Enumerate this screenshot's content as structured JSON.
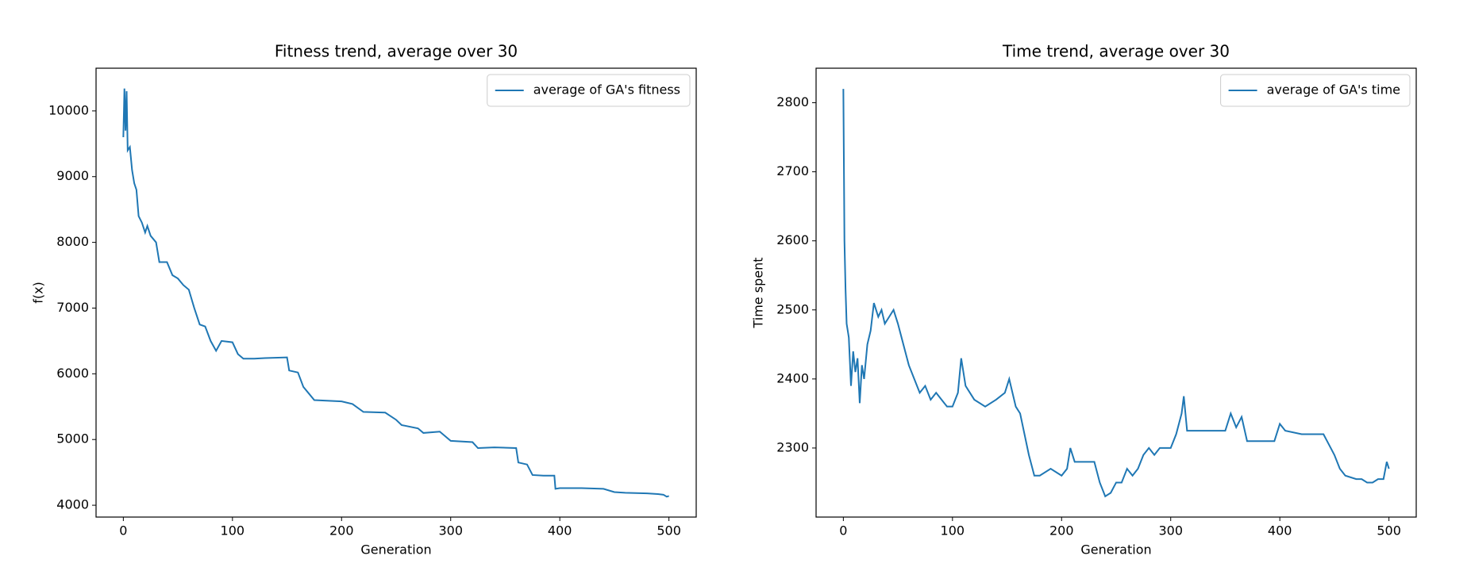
{
  "chart_data": [
    {
      "type": "line",
      "title": "Fitness trend, average over 30",
      "xlabel": "Generation",
      "ylabel": "f(x)",
      "x": [
        0,
        1,
        2,
        3,
        4,
        6,
        8,
        10,
        12,
        14,
        17,
        20,
        22,
        25,
        30,
        33,
        40,
        45,
        50,
        55,
        60,
        65,
        70,
        75,
        80,
        85,
        90,
        100,
        105,
        110,
        120,
        130,
        150,
        152,
        160,
        165,
        170,
        175,
        200,
        210,
        220,
        240,
        250,
        255,
        270,
        275,
        290,
        300,
        320,
        325,
        340,
        360,
        362,
        370,
        375,
        385,
        395,
        396,
        400,
        420,
        440,
        450,
        460,
        480,
        490,
        495,
        498,
        500
      ],
      "series": [
        {
          "name": "average of GA's fitness",
          "color": "#1f77b4",
          "values": [
            9600,
            10340,
            9700,
            10300,
            9400,
            9450,
            9100,
            8900,
            8800,
            8400,
            8300,
            8150,
            8250,
            8100,
            8000,
            7700,
            7700,
            7500,
            7450,
            7350,
            7280,
            7000,
            6750,
            6720,
            6500,
            6350,
            6500,
            6480,
            6300,
            6230,
            6230,
            6240,
            6250,
            6050,
            6020,
            5800,
            5700,
            5600,
            5580,
            5540,
            5420,
            5410,
            5300,
            5220,
            5170,
            5100,
            5120,
            4980,
            4960,
            4870,
            4880,
            4870,
            4650,
            4620,
            4460,
            4450,
            4450,
            4250,
            4260,
            4260,
            4250,
            4200,
            4190,
            4180,
            4170,
            4160,
            4130,
            4140
          ]
        }
      ],
      "xlim": [
        -25,
        525
      ],
      "ylim": [
        3820,
        10650
      ],
      "xticks": [
        0,
        100,
        200,
        300,
        400,
        500
      ],
      "yticks": [
        4000,
        5000,
        6000,
        7000,
        8000,
        9000,
        10000
      ],
      "legend": "upper right"
    },
    {
      "type": "line",
      "title": "Time trend, average over 30",
      "xlabel": "Generation",
      "ylabel": "Time spent",
      "x": [
        0,
        1,
        2,
        3,
        5,
        7,
        9,
        11,
        13,
        15,
        17,
        19,
        22,
        25,
        28,
        32,
        35,
        38,
        42,
        46,
        50,
        55,
        60,
        65,
        70,
        75,
        80,
        85,
        95,
        100,
        105,
        108,
        112,
        120,
        130,
        140,
        148,
        152,
        158,
        162,
        166,
        170,
        175,
        180,
        190,
        200,
        205,
        208,
        212,
        230,
        235,
        240,
        245,
        250,
        255,
        260,
        265,
        270,
        275,
        280,
        285,
        290,
        300,
        305,
        310,
        312,
        315,
        330,
        350,
        355,
        360,
        365,
        370,
        385,
        395,
        400,
        405,
        420,
        440,
        445,
        450,
        455,
        460,
        470,
        475,
        480,
        485,
        490,
        495,
        498,
        500
      ],
      "series": [
        {
          "name": "average of GA's time",
          "color": "#1f77b4",
          "values": [
            2820,
            2600,
            2530,
            2480,
            2460,
            2390,
            2440,
            2410,
            2430,
            2365,
            2420,
            2400,
            2450,
            2470,
            2510,
            2490,
            2500,
            2480,
            2490,
            2500,
            2480,
            2450,
            2420,
            2400,
            2380,
            2390,
            2370,
            2380,
            2360,
            2360,
            2380,
            2430,
            2390,
            2370,
            2360,
            2370,
            2380,
            2400,
            2360,
            2350,
            2320,
            2290,
            2260,
            2260,
            2270,
            2260,
            2270,
            2300,
            2280,
            2280,
            2250,
            2230,
            2235,
            2250,
            2250,
            2270,
            2260,
            2270,
            2290,
            2300,
            2290,
            2300,
            2300,
            2320,
            2350,
            2375,
            2325,
            2325,
            2325,
            2350,
            2330,
            2345,
            2310,
            2310,
            2310,
            2335,
            2325,
            2320,
            2320,
            2305,
            2290,
            2270,
            2260,
            2255,
            2255,
            2250,
            2250,
            2255,
            2255,
            2280,
            2270
          ]
        }
      ],
      "xlim": [
        -25,
        525
      ],
      "ylim": [
        2200,
        2850
      ],
      "xticks": [
        0,
        100,
        200,
        300,
        400,
        500
      ],
      "yticks": [
        2300,
        2400,
        2500,
        2600,
        2700,
        2800
      ],
      "legend": "upper right"
    }
  ]
}
